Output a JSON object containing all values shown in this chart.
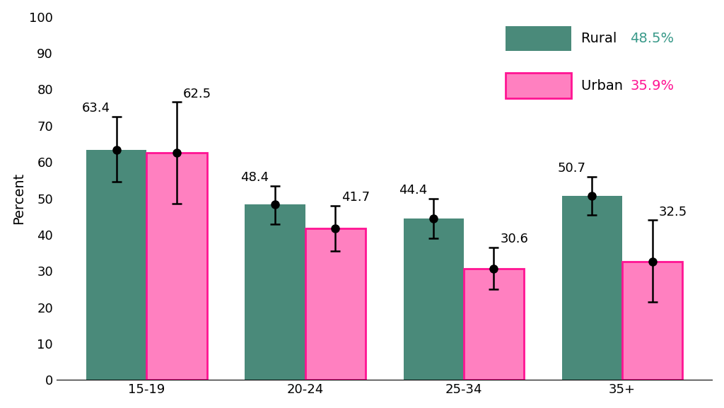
{
  "categories": [
    "15-19",
    "20-24",
    "25-34",
    "35+"
  ],
  "rural_values": [
    63.4,
    48.4,
    44.4,
    50.7
  ],
  "urban_values": [
    62.5,
    41.7,
    30.6,
    32.5
  ],
  "rural_ci_upper": [
    72.5,
    53.5,
    50.0,
    56.0
  ],
  "rural_ci_lower": [
    54.5,
    43.0,
    39.0,
    45.5
  ],
  "urban_ci_upper": [
    76.5,
    48.0,
    36.5,
    44.0
  ],
  "urban_ci_lower": [
    48.5,
    35.5,
    25.0,
    21.5
  ],
  "rural_color": "#4a8a7a",
  "urban_color": "#ff80c0",
  "urban_border_color": "#ff1493",
  "rural_label": "Rural",
  "urban_label": "Urban",
  "rural_pct": "48.5%",
  "urban_pct": "35.9%",
  "rural_pct_color": "#3a9a8a",
  "urban_pct_color": "#ff1493",
  "ylabel": "Percent",
  "ylim": [
    0,
    100
  ],
  "yticks": [
    0,
    10,
    20,
    30,
    40,
    50,
    60,
    70,
    80,
    90,
    100
  ],
  "bar_width": 0.38,
  "label_fontsize": 14,
  "tick_fontsize": 13,
  "legend_fontsize": 14,
  "value_fontsize": 13
}
